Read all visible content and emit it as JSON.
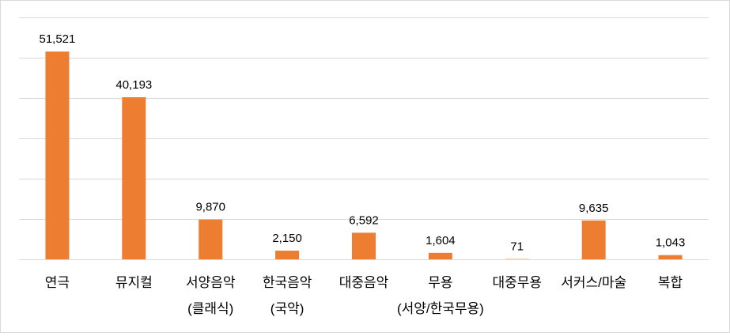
{
  "chart_data": {
    "type": "bar",
    "categories": [
      [
        "연극"
      ],
      [
        "뮤지컬"
      ],
      [
        "서양음악",
        "(클래식)"
      ],
      [
        "한국음악",
        "(국악)"
      ],
      [
        "대중음악"
      ],
      [
        "무용",
        "(서양/한국무용)"
      ],
      [
        "대중무용"
      ],
      [
        "서커스/마술"
      ],
      [
        "복합"
      ]
    ],
    "values": [
      51521,
      40193,
      9870,
      2150,
      6592,
      1604,
      71,
      9635,
      1043
    ],
    "data_labels": [
      "51,521",
      "40,193",
      "9,870",
      "2,150",
      "6,592",
      "1,604",
      "71",
      "9,635",
      "1,043"
    ],
    "ylim": [
      0,
      60000
    ],
    "grid": true,
    "legend": "none",
    "colors": {
      "bar": "#ED7D31",
      "grid": "#d9d9d9",
      "text": "#000000"
    }
  }
}
